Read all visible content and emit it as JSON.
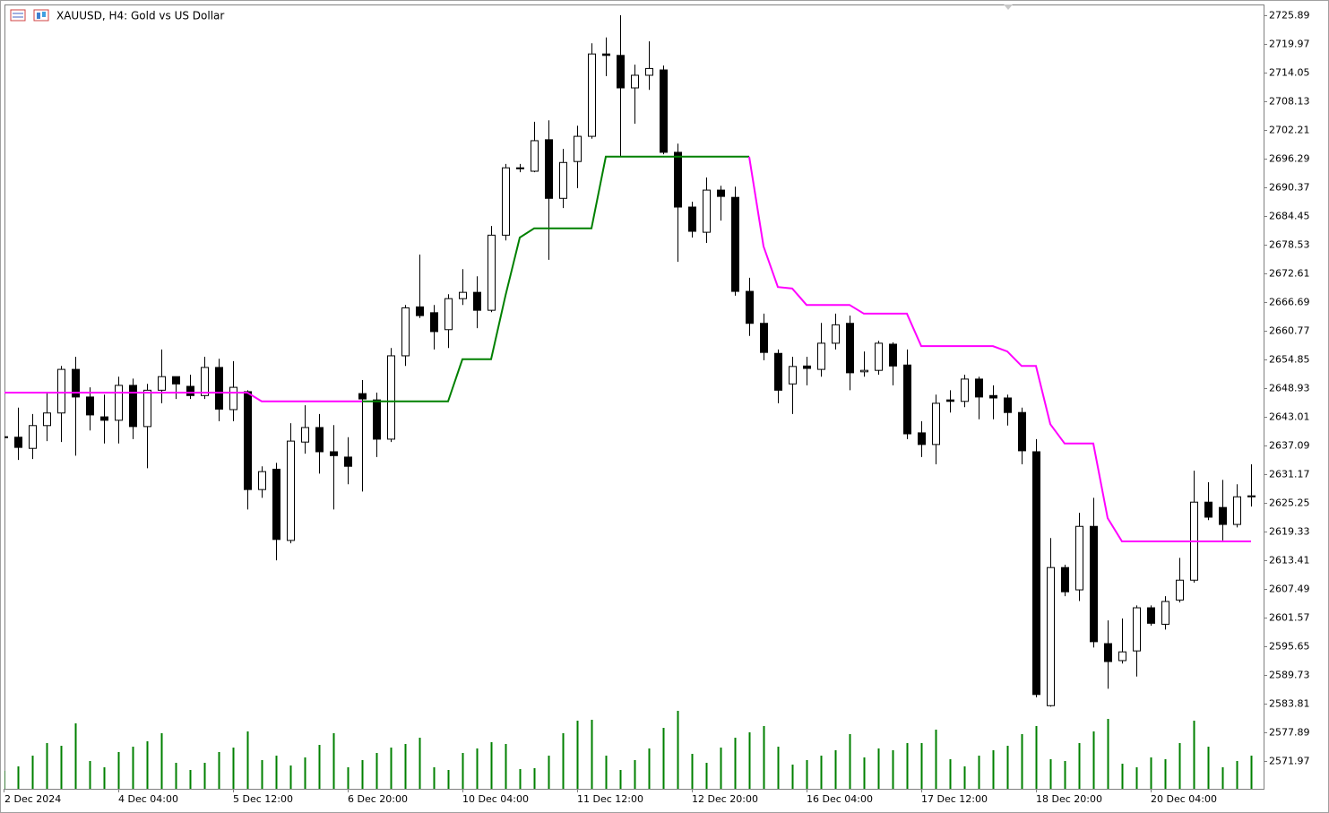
{
  "chart_data": {
    "type": "candlestick",
    "title": "XAUUSD, H4:  Gold vs US Dollar",
    "categories": [
      "2 Dec 2024",
      null,
      null,
      null,
      null,
      null,
      null,
      null,
      "4 Dec 04:00",
      null,
      null,
      null,
      null,
      null,
      null,
      null,
      "5 Dec 12:00",
      null,
      null,
      null,
      null,
      null,
      null,
      null,
      "6 Dec 20:00",
      null,
      null,
      null,
      null,
      null,
      null,
      null,
      "10 Dec 04:00",
      null,
      null,
      null,
      null,
      null,
      null,
      null,
      "11 Dec 12:00",
      null,
      null,
      null,
      null,
      null,
      null,
      null,
      "12 Dec 20:00",
      null,
      null,
      null,
      null,
      null,
      null,
      null,
      "16 Dec 04:00",
      null,
      null,
      null,
      null,
      null,
      null,
      null,
      "17 Dec 12:00",
      null,
      null,
      null,
      null,
      null,
      null,
      null,
      "18 Dec 20:00",
      null,
      null,
      null,
      null,
      null,
      null,
      null,
      "20 Dec 04:00",
      null,
      null,
      null,
      null,
      null,
      null,
      null
    ],
    "open": [
      2638.8,
      2638.8,
      2636.5,
      2641.2,
      2643.8,
      2652.8,
      2647.1,
      2643.0,
      2642.3,
      2649.5,
      2641.0,
      2648.5,
      2651.3,
      2649.3,
      2647.4,
      2653.2,
      2644.5,
      2648.2,
      2628.0,
      2632.2,
      2617.5,
      2637.8,
      2640.8,
      2635.8,
      2634.7,
      2647.8,
      2646.5,
      2638.4,
      2655.6,
      2665.7,
      2664.5,
      2661.0,
      2667.4,
      2668.7,
      2665.0,
      2680.5,
      2694.4,
      2693.7,
      2700.2,
      2688.1,
      2695.7,
      2700.9,
      2717.9,
      2717.6,
      2710.9,
      2713.5,
      2714.6,
      2697.6,
      2686.3,
      2681.1,
      2689.8,
      2688.3,
      2668.9,
      2662.3,
      2656.1,
      2649.8,
      2653.5,
      2652.8,
      2658.2,
      2662.3,
      2652.3,
      2652.6,
      2658.0,
      2653.7,
      2639.7,
      2637.3,
      2646.5,
      2646.2,
      2650.8,
      2647.4,
      2646.9,
      2643.9,
      2635.8,
      2583.4,
      2611.9,
      2607.3,
      2620.4,
      2596.2,
      2592.7,
      2594.7,
      2603.6,
      2600.2,
      2605.2,
      2609.3,
      2625.4,
      2624.3,
      2620.8,
      2626.5
    ],
    "high": [
      2640.2,
      2644.9,
      2643.6,
      2648.0,
      2653.5,
      2655.4,
      2649.1,
      2647.6,
      2651.3,
      2650.9,
      2649.8,
      2656.9,
      2651.3,
      2651.7,
      2655.4,
      2655.0,
      2654.5,
      2648.5,
      2632.8,
      2633.5,
      2641.7,
      2645.4,
      2643.6,
      2641.3,
      2638.8,
      2650.6,
      2648.0,
      2657.2,
      2666.1,
      2676.5,
      2666.1,
      2668.3,
      2673.5,
      2672.0,
      2682.4,
      2695.2,
      2695.2,
      2703.9,
      2704.2,
      2698.3,
      2703.1,
      2720.1,
      2721.3,
      2725.9,
      2715.7,
      2720.5,
      2715.5,
      2699.4,
      2687.4,
      2692.4,
      2690.7,
      2690.5,
      2671.7,
      2664.3,
      2656.9,
      2655.4,
      2655.4,
      2662.4,
      2664.3,
      2663.9,
      2656.5,
      2658.7,
      2658.4,
      2656.9,
      2642.1,
      2647.6,
      2648.5,
      2651.7,
      2651.3,
      2649.5,
      2647.6,
      2644.9,
      2638.4,
      2618.0,
      2612.5,
      2623.2,
      2626.3,
      2601.0,
      2601.4,
      2604.1,
      2604.1,
      2606.0,
      2613.9,
      2631.9,
      2629.5,
      2630.0,
      2629.1,
      2633.2
    ],
    "low": [
      2637.5,
      2634.1,
      2634.3,
      2638.0,
      2637.8,
      2635.0,
      2640.2,
      2637.5,
      2637.5,
      2638.4,
      2632.4,
      2645.8,
      2646.7,
      2646.7,
      2646.7,
      2642.1,
      2642.1,
      2623.9,
      2626.3,
      2613.4,
      2616.9,
      2635.4,
      2631.3,
      2623.9,
      2629.1,
      2627.6,
      2634.7,
      2637.8,
      2653.5,
      2663.4,
      2656.9,
      2657.2,
      2666.1,
      2661.3,
      2664.6,
      2679.4,
      2693.5,
      2693.5,
      2675.4,
      2686.1,
      2690.2,
      2700.4,
      2713.3,
      2696.6,
      2703.5,
      2710.5,
      2697.2,
      2675.0,
      2680.0,
      2678.9,
      2683.5,
      2668.0,
      2659.7,
      2654.7,
      2645.8,
      2643.6,
      2649.5,
      2651.3,
      2656.9,
      2648.5,
      2651.3,
      2651.7,
      2649.5,
      2638.4,
      2634.7,
      2633.2,
      2643.9,
      2645.0,
      2642.5,
      2642.5,
      2641.2,
      2633.2,
      2585.1,
      2583.2,
      2606.0,
      2605.0,
      2595.4,
      2586.9,
      2592.1,
      2589.4,
      2599.9,
      2599.1,
      2604.7,
      2608.8,
      2621.7,
      2617.5,
      2620.2,
      2624.5
    ],
    "close": [
      2638.9,
      2636.7,
      2641.2,
      2643.8,
      2652.8,
      2647.1,
      2643.4,
      2642.3,
      2649.5,
      2641.0,
      2648.5,
      2651.3,
      2649.8,
      2647.4,
      2653.2,
      2644.6,
      2649.1,
      2628.0,
      2631.7,
      2617.7,
      2638.0,
      2640.8,
      2635.8,
      2635.0,
      2632.8,
      2646.7,
      2638.4,
      2655.6,
      2665.5,
      2663.9,
      2660.6,
      2667.4,
      2668.7,
      2665.0,
      2680.5,
      2694.4,
      2694.2,
      2700.0,
      2688.1,
      2695.5,
      2700.9,
      2717.9,
      2717.6,
      2710.9,
      2713.5,
      2714.9,
      2697.6,
      2686.3,
      2681.3,
      2689.8,
      2688.5,
      2668.9,
      2662.3,
      2656.3,
      2648.5,
      2653.4,
      2653.0,
      2658.2,
      2662.0,
      2652.1,
      2652.6,
      2658.2,
      2653.5,
      2639.5,
      2637.3,
      2645.8,
      2646.2,
      2650.8,
      2647.1,
      2646.9,
      2643.9,
      2636.0,
      2585.7,
      2611.9,
      2606.9,
      2620.4,
      2596.6,
      2592.5,
      2594.5,
      2603.6,
      2600.4,
      2604.9,
      2609.3,
      2625.4,
      2622.3,
      2620.8,
      2626.5,
      2626.7
    ],
    "bull_color": "#ffffff",
    "bear_color": "#000000",
    "line_series": [
      {
        "color": "#008000",
        "values": [
          null,
          null,
          null,
          null,
          null,
          null,
          null,
          null,
          null,
          null,
          null,
          2648.0,
          2648.0,
          2648.0,
          2648.0,
          2648.0,
          2648.0,
          null,
          null,
          null,
          null,
          null,
          null,
          null,
          null,
          2646.2,
          2646.2,
          2646.2,
          2646.2,
          2646.2,
          2646.2,
          2646.2,
          2654.9,
          2654.9,
          2654.9,
          2668.0,
          2680.0,
          2681.9,
          2681.9,
          2681.9,
          2681.9,
          2681.9,
          2696.7,
          2696.7,
          2696.7,
          2696.7,
          2696.7,
          2696.7,
          2696.7,
          2696.7,
          2696.7,
          2696.7,
          2696.7,
          null,
          null,
          null,
          null,
          null,
          null,
          null,
          null,
          null,
          null,
          null,
          null,
          null,
          null,
          null,
          null,
          null,
          null,
          null,
          null,
          null,
          null,
          null,
          null,
          null,
          null,
          null,
          null,
          null,
          null,
          null,
          null,
          null,
          null,
          null
        ]
      },
      {
        "color": "#ff00ff",
        "values": [
          2648.0,
          2648.0,
          2648.0,
          2648.0,
          2648.0,
          2648.0,
          2648.0,
          2648.0,
          2648.0,
          2648.0,
          2648.0,
          2648.0,
          2648.0,
          2648.0,
          2648.0,
          2648.0,
          2648.0,
          2648.0,
          2646.2,
          2646.2,
          2646.2,
          2646.2,
          2646.2,
          2646.2,
          2646.2,
          2646.2,
          null,
          null,
          null,
          null,
          null,
          null,
          null,
          null,
          null,
          null,
          null,
          null,
          null,
          null,
          null,
          null,
          null,
          null,
          null,
          null,
          null,
          null,
          null,
          null,
          null,
          null,
          2696.7,
          2678.2,
          2669.8,
          2669.5,
          2666.1,
          2666.1,
          2666.1,
          2666.1,
          2664.3,
          2664.3,
          2664.3,
          2664.3,
          2657.6,
          2657.6,
          2657.6,
          2657.6,
          2657.6,
          2657.6,
          2656.5,
          2653.5,
          2653.5,
          2641.5,
          2637.5,
          2637.5,
          2637.5,
          2622.1,
          2617.3,
          2617.3,
          2617.3,
          2617.3,
          2617.3,
          2617.3,
          2617.3,
          2617.3,
          2617.3,
          2617.3
        ]
      }
    ],
    "volume": [
      20,
      25,
      37,
      51,
      48,
      73,
      31,
      24,
      41,
      47,
      53,
      62,
      29,
      21,
      29,
      41,
      46,
      64,
      32,
      37,
      26,
      35,
      49,
      62,
      24,
      32,
      40,
      46,
      50,
      57,
      24,
      21,
      40,
      45,
      52,
      50,
      22,
      23,
      37,
      62,
      76,
      77,
      37,
      21,
      32,
      45,
      68,
      87,
      39,
      29,
      46,
      57,
      63,
      70,
      47,
      27,
      32,
      37,
      43,
      61,
      35,
      45,
      43,
      51,
      51,
      66,
      33,
      25,
      37,
      43,
      48,
      61,
      70,
      33,
      31,
      51,
      64,
      78,
      28,
      24,
      35,
      33,
      51,
      76,
      47,
      24,
      31,
      37
    ],
    "volume_color": "#008000",
    "volume_ylim": [
      0,
      100
    ],
    "ylim": [
      2566.24,
      2728.11
    ],
    "yticks": [
      2725.89,
      2719.97,
      2714.05,
      2708.13,
      2702.21,
      2696.29,
      2690.37,
      2684.45,
      2678.53,
      2672.61,
      2666.69,
      2660.77,
      2654.85,
      2648.93,
      2643.01,
      2637.09,
      2631.17,
      2625.25,
      2619.33,
      2613.41,
      2607.49,
      2601.57,
      2595.65,
      2589.73,
      2583.81,
      2577.89,
      2571.97
    ]
  }
}
